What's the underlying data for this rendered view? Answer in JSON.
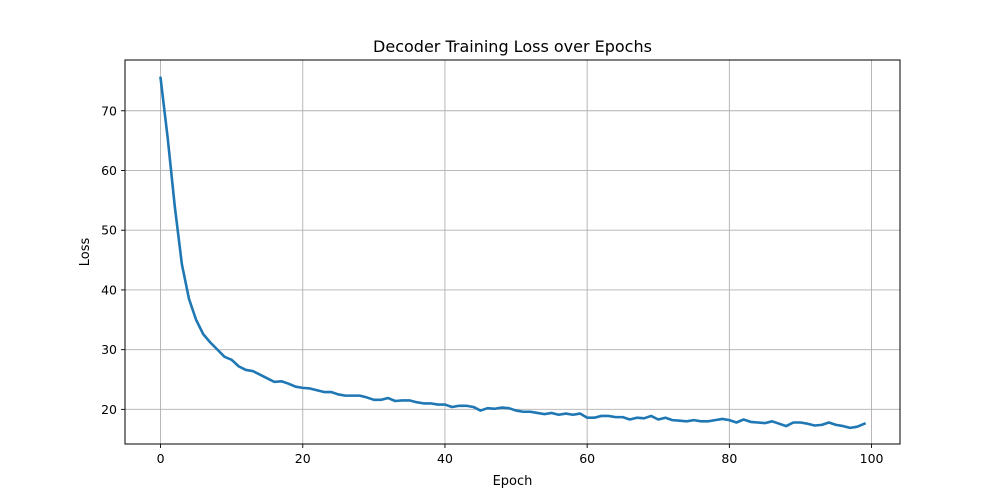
{
  "chart_data": {
    "type": "line",
    "title": "Decoder Training Loss over Epochs",
    "xlabel": "Epoch",
    "ylabel": "Loss",
    "xlim": [
      -5,
      104
    ],
    "ylim": [
      14.2,
      78.5
    ],
    "xticks": [
      0,
      20,
      40,
      60,
      80,
      100
    ],
    "yticks": [
      20,
      30,
      40,
      50,
      60,
      70
    ],
    "grid": true,
    "color": "#1f77b4",
    "series": [
      {
        "x": [
          0,
          1,
          2,
          3,
          4,
          5,
          6,
          7,
          8,
          9,
          10,
          11,
          12,
          13,
          14,
          15,
          16,
          17,
          18,
          19,
          20,
          21,
          22,
          23,
          24,
          25,
          26,
          27,
          28,
          29,
          30,
          31,
          32,
          33,
          34,
          35,
          36,
          37,
          38,
          39,
          40,
          41,
          42,
          43,
          44,
          45,
          46,
          47,
          48,
          49,
          50,
          51,
          52,
          53,
          54,
          55,
          56,
          57,
          58,
          59,
          60,
          61,
          62,
          63,
          64,
          65,
          66,
          67,
          68,
          69,
          70,
          71,
          72,
          73,
          74,
          75,
          76,
          77,
          78,
          79,
          80,
          81,
          82,
          83,
          84,
          85,
          86,
          87,
          88,
          89,
          90,
          91,
          92,
          93,
          94,
          95,
          96,
          97,
          98,
          99
        ],
        "values": [
          75.5,
          65.5,
          54.0,
          44.3,
          38.5,
          35.0,
          32.6,
          31.2,
          30.0,
          28.8,
          28.3,
          27.2,
          26.6,
          26.4,
          25.8,
          25.2,
          24.6,
          24.7,
          24.3,
          23.8,
          23.6,
          23.5,
          23.2,
          22.9,
          22.9,
          22.5,
          22.3,
          22.3,
          22.3,
          22.0,
          21.6,
          21.6,
          21.9,
          21.4,
          21.5,
          21.5,
          21.2,
          21.0,
          21.0,
          20.8,
          20.8,
          20.4,
          20.6,
          20.6,
          20.4,
          19.8,
          20.2,
          20.1,
          20.3,
          20.2,
          19.8,
          19.6,
          19.6,
          19.4,
          19.2,
          19.4,
          19.1,
          19.3,
          19.1,
          19.3,
          18.6,
          18.6,
          18.9,
          18.9,
          18.7,
          18.7,
          18.3,
          18.6,
          18.5,
          18.9,
          18.3,
          18.6,
          18.2,
          18.1,
          18.0,
          18.2,
          18.0,
          18.0,
          18.2,
          18.4,
          18.2,
          17.8,
          18.3,
          17.9,
          17.8,
          17.7,
          18.0,
          17.6,
          17.2,
          17.8,
          17.8,
          17.6,
          17.3,
          17.4,
          17.8,
          17.4,
          17.2,
          16.9,
          17.1,
          17.6
        ]
      }
    ]
  }
}
